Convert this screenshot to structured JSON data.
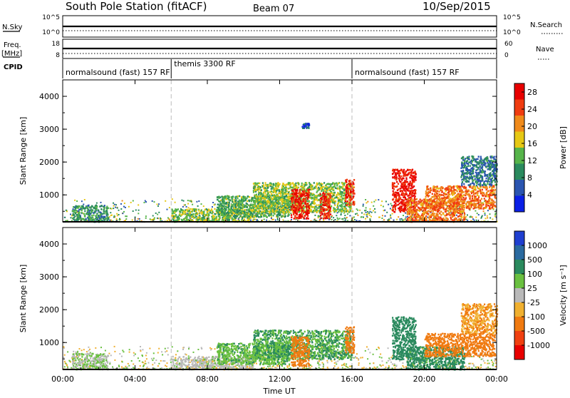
{
  "header": {
    "station": "South Pole Station (fitACF)",
    "beam": "Beam 07",
    "date": "10/Sep/2015"
  },
  "summary": {
    "nsky_label": "N.Sky",
    "nsearch_label": "N.Search",
    "freq_label_1": "Freq.",
    "freq_label_2": "[MHz]",
    "nave_label": "Nave",
    "cpid_label": "CPID",
    "nsky_ticks": [
      "10^5",
      "10^0"
    ],
    "nsearch_ticks": [
      "10^5",
      "10^0"
    ],
    "freq_ticks": [
      "18",
      "8"
    ],
    "nave_ticks": [
      "60",
      "0"
    ]
  },
  "cpid_segments": [
    {
      "label": "normalsound (fast) 157 RF",
      "start": 0,
      "end": 6
    },
    {
      "label": "themis 3300 RF",
      "start": 6,
      "end": 16
    },
    {
      "label": "normalsound (fast) 157 RF",
      "start": 16,
      "end": 24
    }
  ],
  "x_axis": {
    "label": "Time UT",
    "ticks": [
      "00:00",
      "04:00",
      "08:00",
      "12:00",
      "16:00",
      "20:00",
      "00:00"
    ],
    "range": [
      0,
      24
    ]
  },
  "chart_data": [
    {
      "type": "heatmap",
      "quantity": "power",
      "ylabel": "Slant Range [km]",
      "yticks": [
        "1000",
        "2000",
        "3000",
        "4000"
      ],
      "ylim": [
        180,
        4500
      ],
      "colorbar_label": "Power [dB]",
      "colorbar_ticks": [
        "4",
        "8",
        "12",
        "16",
        "20",
        "24",
        "28"
      ],
      "colorbar_range": [
        0,
        30
      ],
      "colors": [
        "#0a1fe6",
        "#2a55b0",
        "#2a8a5e",
        "#56b44a",
        "#e6c814",
        "#f08a1a",
        "#f03c10",
        "#e80000"
      ],
      "blobs": [
        {
          "t0": 0.5,
          "t1": 2.5,
          "r0": 200,
          "r1": 700,
          "value": 10
        },
        {
          "t0": 6.0,
          "t1": 10.5,
          "r0": 200,
          "r1": 600,
          "value": 14
        },
        {
          "t0": 8.5,
          "t1": 12.5,
          "r0": 350,
          "r1": 1000,
          "value": 12
        },
        {
          "t0": 10.5,
          "t1": 16.0,
          "r0": 500,
          "r1": 1400,
          "value": 14
        },
        {
          "t0": 12.6,
          "t1": 13.6,
          "r0": 300,
          "r1": 1200,
          "value": 27
        },
        {
          "t0": 14.2,
          "t1": 14.8,
          "r0": 300,
          "r1": 1100,
          "value": 26
        },
        {
          "t0": 15.6,
          "t1": 16.1,
          "r0": 700,
          "r1": 1500,
          "value": 26
        },
        {
          "t0": 18.2,
          "t1": 19.5,
          "r0": 500,
          "r1": 1800,
          "value": 27
        },
        {
          "t0": 19.0,
          "t1": 22.2,
          "r0": 200,
          "r1": 900,
          "value": 22
        },
        {
          "t0": 20.0,
          "t1": 23.9,
          "r0": 600,
          "r1": 1300,
          "value": 22
        },
        {
          "t0": 22.0,
          "t1": 24.0,
          "r0": 1300,
          "r1": 2200,
          "value": 8
        },
        {
          "t0": 13.2,
          "t1": 13.6,
          "r0": 3050,
          "r1": 3200,
          "value": 5
        }
      ]
    },
    {
      "type": "heatmap",
      "quantity": "velocity",
      "ylabel": "Slant Range [km]",
      "yticks": [
        "1000",
        "2000",
        "3000",
        "4000"
      ],
      "ylim": [
        180,
        4500
      ],
      "colorbar_label": "Velocity [m s⁻¹]",
      "colorbar_ticks": [
        "1000",
        "500",
        "100",
        "25",
        "-25",
        "-100",
        "-500",
        "-1000"
      ],
      "colors": [
        "#1f3fd0",
        "#2a6aa0",
        "#2a8a5e",
        "#6ac040",
        "#b9b9b9",
        "#f0b030",
        "#f07a10",
        "#f04010",
        "#e80000"
      ],
      "blobs": [
        {
          "t0": 0.5,
          "t1": 2.5,
          "r0": 200,
          "r1": 700,
          "value": 25
        },
        {
          "t0": 6.0,
          "t1": 10.5,
          "r0": 200,
          "r1": 600,
          "value": 0
        },
        {
          "t0": 8.5,
          "t1": 12.5,
          "r0": 350,
          "r1": 1000,
          "value": 80
        },
        {
          "t0": 10.5,
          "t1": 16.0,
          "r0": 500,
          "r1": 1400,
          "value": 100
        },
        {
          "t0": 12.6,
          "t1": 13.6,
          "r0": 300,
          "r1": 1200,
          "value": -200
        },
        {
          "t0": 15.6,
          "t1": 16.1,
          "r0": 700,
          "r1": 1500,
          "value": -300
        },
        {
          "t0": 18.2,
          "t1": 19.5,
          "r0": 500,
          "r1": 1800,
          "value": 300
        },
        {
          "t0": 19.0,
          "t1": 22.2,
          "r0": 200,
          "r1": 900,
          "value": 150
        },
        {
          "t0": 20.0,
          "t1": 23.9,
          "r0": 600,
          "r1": 1300,
          "value": -300
        },
        {
          "t0": 22.0,
          "t1": 24.0,
          "r0": 1300,
          "r1": 2200,
          "value": -100
        }
      ]
    }
  ]
}
